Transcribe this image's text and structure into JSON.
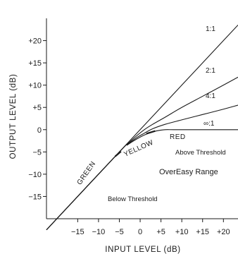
{
  "chart_data": {
    "type": "line",
    "title": "",
    "xlabel": "INPUT LEVEL (dB)",
    "ylabel": "OUTPUT LEVEL (dB)",
    "xlim": [
      -22.5,
      23.5
    ],
    "ylim": [
      -20,
      25
    ],
    "x_ticks": [
      {
        "value": -15,
        "label": "−15"
      },
      {
        "value": -10,
        "label": "−10"
      },
      {
        "value": -5,
        "label": "−5"
      },
      {
        "value": 0,
        "label": "0"
      },
      {
        "value": 5,
        "label": "+5"
      },
      {
        "value": 10,
        "label": "+10"
      },
      {
        "value": 15,
        "label": "+15"
      },
      {
        "value": 20,
        "label": "+20"
      }
    ],
    "y_ticks": [
      {
        "value": 20,
        "label": "+20"
      },
      {
        "value": 15,
        "label": "+15"
      },
      {
        "value": 10,
        "label": "+10"
      },
      {
        "value": 5,
        "label": "+5"
      },
      {
        "value": 0,
        "label": "0"
      },
      {
        "value": -5,
        "label": "−5"
      },
      {
        "value": -10,
        "label": "−10"
      },
      {
        "value": -15,
        "label": "−15"
      }
    ],
    "series": [
      {
        "name": "1:1",
        "x": [
          -22.5,
          -5,
          0,
          10,
          20,
          23.5
        ],
        "y": [
          -22.5,
          -5,
          0,
          10,
          20,
          23.5
        ]
      },
      {
        "name": "2:1",
        "x": [
          -22.5,
          -5,
          -3,
          -1,
          1,
          3,
          6,
          10,
          15,
          20,
          23.5
        ],
        "y": [
          -22.5,
          -5,
          -3.2,
          -1.5,
          0,
          1.2,
          2.8,
          5,
          7.5,
          10,
          11.8
        ]
      },
      {
        "name": "4:1",
        "x": [
          -22.5,
          -5,
          -3,
          -1,
          1,
          3,
          6,
          10,
          15,
          20,
          23.5
        ],
        "y": [
          -22.5,
          -5,
          -3.3,
          -1.9,
          -0.8,
          0.2,
          1.2,
          2.2,
          3.4,
          4.6,
          5.5
        ]
      },
      {
        "name": "∞:1",
        "x": [
          -22.5,
          -5,
          -3,
          -1,
          1,
          3,
          5,
          6,
          8,
          12,
          18,
          23.5
        ],
        "y": [
          -22.5,
          -5,
          -3.4,
          -2.2,
          -1.2,
          -0.5,
          -0.1,
          0,
          0,
          0,
          0,
          0
        ]
      }
    ],
    "grid": false,
    "annotations": {
      "zones": [
        "GREEN",
        "YELLOW",
        "RED"
      ],
      "regions": [
        "Above Threshold",
        "OverEasy Range",
        "Below Threshold"
      ]
    }
  }
}
